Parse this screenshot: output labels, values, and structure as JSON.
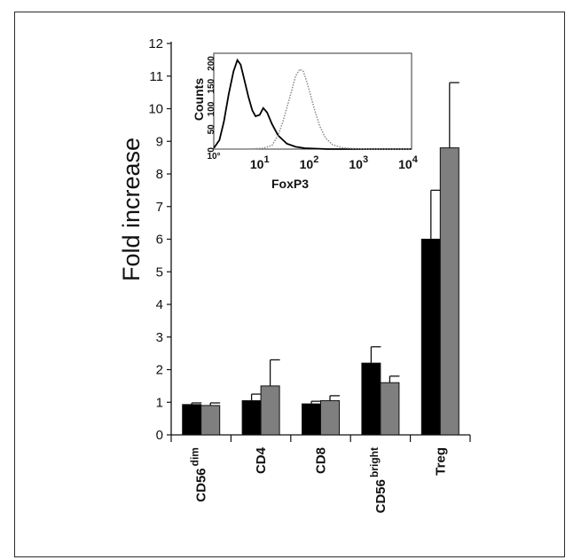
{
  "chart_data": [
    {
      "type": "bar",
      "ylabel": "Fold increase",
      "xlabel": "",
      "ylim": [
        0,
        12
      ],
      "yticks": [
        0,
        1,
        2,
        3,
        4,
        5,
        6,
        7,
        8,
        9,
        10,
        11,
        12
      ],
      "categories": [
        {
          "base": "CD56",
          "sup": "dim"
        },
        {
          "base": "CD4",
          "sup": ""
        },
        {
          "base": "CD8",
          "sup": ""
        },
        {
          "base": "CD56",
          "sup": "bright"
        },
        {
          "base": "Treg",
          "sup": ""
        }
      ],
      "series": [
        {
          "color": "#000000",
          "values": [
            0.93,
            1.05,
            0.95,
            2.2,
            6.0
          ],
          "errors": [
            0.05,
            0.2,
            0.08,
            0.5,
            1.5
          ]
        },
        {
          "color": "#7f7f7f",
          "values": [
            0.9,
            1.5,
            1.05,
            1.6,
            8.8
          ],
          "errors": [
            0.08,
            0.8,
            0.15,
            0.2,
            2.0
          ]
        }
      ],
      "grid": false,
      "legend": "none"
    },
    {
      "type": "line",
      "title": "",
      "xlabel": "FoxP3",
      "ylabel": "Counts",
      "xscale": "log",
      "xlim": [
        1,
        10000
      ],
      "xticks": [
        {
          "base": "10",
          "exp": "1"
        },
        {
          "base": "10",
          "exp": "2"
        },
        {
          "base": "10",
          "exp": "3"
        },
        {
          "base": "10",
          "exp": "4"
        }
      ],
      "yticks_small": [
        "0",
        "50",
        "100",
        "150",
        "200"
      ],
      "xtick0": "10°",
      "series": [
        {
          "style": "solid",
          "color": "#000000",
          "x": [
            1,
            1.3,
            1.6,
            2.0,
            2.5,
            3.0,
            3.5,
            4.2,
            5.0,
            6.0,
            7.0,
            8.5,
            10,
            12,
            15,
            20,
            30,
            45,
            70,
            120,
            200,
            400,
            1000,
            10000
          ],
          "y": [
            2,
            20,
            60,
            120,
            170,
            195,
            185,
            150,
            115,
            85,
            72,
            75,
            90,
            80,
            55,
            30,
            12,
            5,
            2,
            1,
            0,
            0,
            0,
            0
          ]
        },
        {
          "style": "dotted",
          "color": "#8a8a8a",
          "x": [
            1,
            5,
            10,
            15,
            20,
            25,
            30,
            38,
            45,
            55,
            65,
            75,
            90,
            110,
            140,
            180,
            250,
            400,
            700,
            1500,
            10000
          ],
          "y": [
            0,
            0,
            2,
            8,
            30,
            60,
            90,
            130,
            160,
            175,
            170,
            150,
            120,
            85,
            50,
            25,
            10,
            3,
            1,
            0,
            0
          ]
        }
      ]
    }
  ]
}
